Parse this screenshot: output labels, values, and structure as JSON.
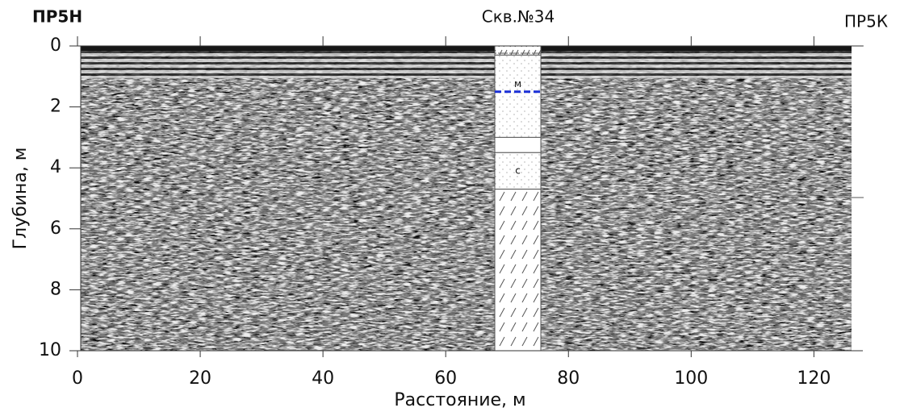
{
  "chart_data": {
    "type": "radargram",
    "left_label": "ПР5Н",
    "right_label": "ПР5К",
    "xlabel": "Расстояние, м",
    "ylabel": "Глубина, м",
    "xlim": [
      0,
      126
    ],
    "ylim": [
      0,
      10
    ],
    "xticks": [
      0,
      20,
      40,
      60,
      80,
      100,
      120
    ],
    "yticks": [
      0,
      2,
      4,
      6,
      8,
      10
    ],
    "y_inverted": true,
    "borehole": {
      "label": "Скв.№34",
      "x": [
        68,
        75.5
      ],
      "water_level": 1.5,
      "layers": [
        {
          "top": 0,
          "bottom": 0.3
        },
        {
          "top": 0.3,
          "bottom": 3,
          "label": "м"
        },
        {
          "top": 3,
          "bottom": 3.5
        },
        {
          "top": 3.5,
          "bottom": 4.7,
          "label": "с"
        },
        {
          "top": 4.7,
          "bottom": 10
        }
      ]
    }
  }
}
